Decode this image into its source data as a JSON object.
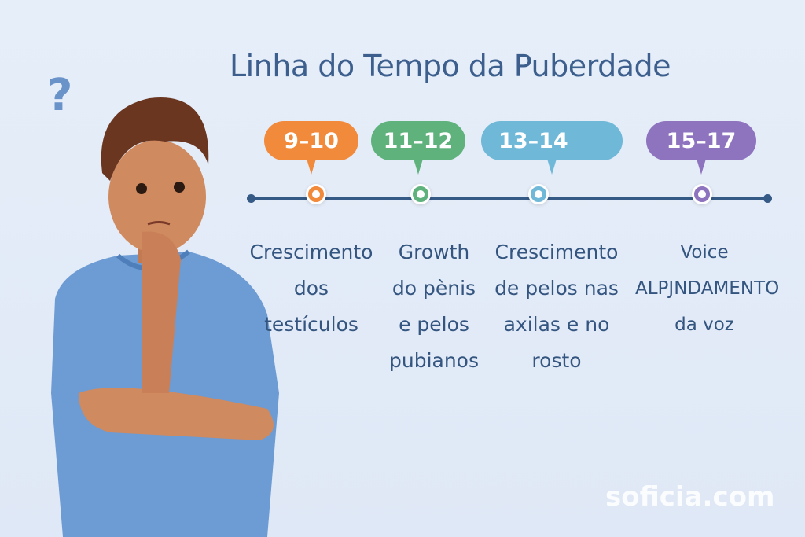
{
  "title": "Linha do Tempo da Puberdade",
  "stages": [
    {
      "age": "9–10",
      "color": "#f28a3c",
      "text": "Crescimento\ndos\ntestículos"
    },
    {
      "age": "11–12",
      "color": "#5fb27c",
      "text": "Growth\ndo pènis\ne pelos\npubianos"
    },
    {
      "age": "13–14",
      "color": "#6fb8d8",
      "text": "Crescimento\nde pelos nas\naxilas e no\nrosto"
    },
    {
      "age": "15–17",
      "color": "#8e74bf",
      "text": "Voice\nALPJNDAMENTO\nda voz"
    }
  ],
  "question_mark": "?",
  "watermark": "soficia.com"
}
